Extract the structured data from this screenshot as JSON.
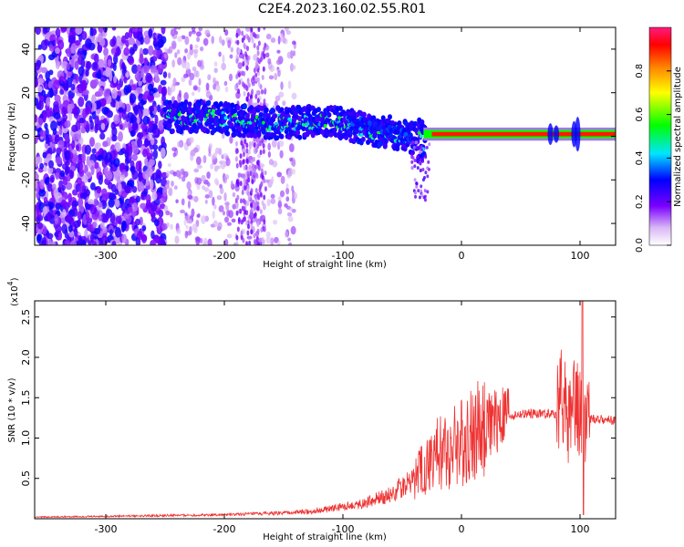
{
  "title": "C2E4.2023.160.02.55.R01",
  "chart_data": [
    {
      "type": "heatmap",
      "title": "C2E4.2023.160.02.55.R01",
      "xlabel": "Height of straight line (km)",
      "ylabel": "Frequency (Hz)",
      "xlim": [
        -360,
        130
      ],
      "ylim": [
        -50,
        50
      ],
      "xticks": [
        "-300",
        "-200",
        "-100",
        "0",
        "100"
      ],
      "yticks": [
        "-40",
        "-20",
        "0",
        "20",
        "40"
      ],
      "grid": false,
      "colorbar": {
        "label": "Normalized spectral amplitude",
        "range": [
          0.0,
          1.0
        ],
        "ticks": [
          "0.0",
          "0.2",
          "0.4",
          "0.6",
          "0.8"
        ]
      },
      "signal_track": {
        "x": [
          -250,
          -220,
          -180,
          -150,
          -120,
          -100,
          -80,
          -60,
          -45,
          -35,
          -25,
          0,
          50,
          100,
          130
        ],
        "y": [
          9,
          9,
          7,
          6,
          7,
          6,
          3,
          2,
          0,
          -2,
          1,
          1,
          1,
          1,
          1
        ],
        "peak_amplitude": [
          0.45,
          0.4,
          0.35,
          0.35,
          0.3,
          0.3,
          0.35,
          0.35,
          0.25,
          0.2,
          0.85,
          0.9,
          0.9,
          0.95,
          0.9
        ]
      }
    },
    {
      "type": "line",
      "xlabel": "Height of straight line (km)",
      "ylabel": "SNR (10 * v/v)",
      "yscale_label": "(x10",
      "yscale_exp": "4",
      "xlim": [
        -360,
        130
      ],
      "ylim": [
        0,
        27000
      ],
      "xticks": [
        "-300",
        "-200",
        "-100",
        "0",
        "100"
      ],
      "yticks": [
        "0.5",
        "1.0",
        "1.5",
        "2.0",
        "2.5"
      ],
      "color": "#ee3333",
      "series": [
        {
          "x": [
            -360,
            -300,
            -250,
            -200,
            -150,
            -120,
            -100,
            -80,
            -60,
            -40,
            -20,
            0,
            20,
            40,
            60,
            80,
            85,
            90,
            95,
            100,
            105,
            110,
            130
          ],
          "y": [
            200,
            300,
            400,
            500,
            700,
            1000,
            1500,
            2000,
            3000,
            5000,
            8000,
            9500,
            11500,
            12800,
            13000,
            13000,
            15000,
            12000,
            14000,
            13000,
            12500,
            12300,
            12200
          ]
        }
      ]
    }
  ]
}
